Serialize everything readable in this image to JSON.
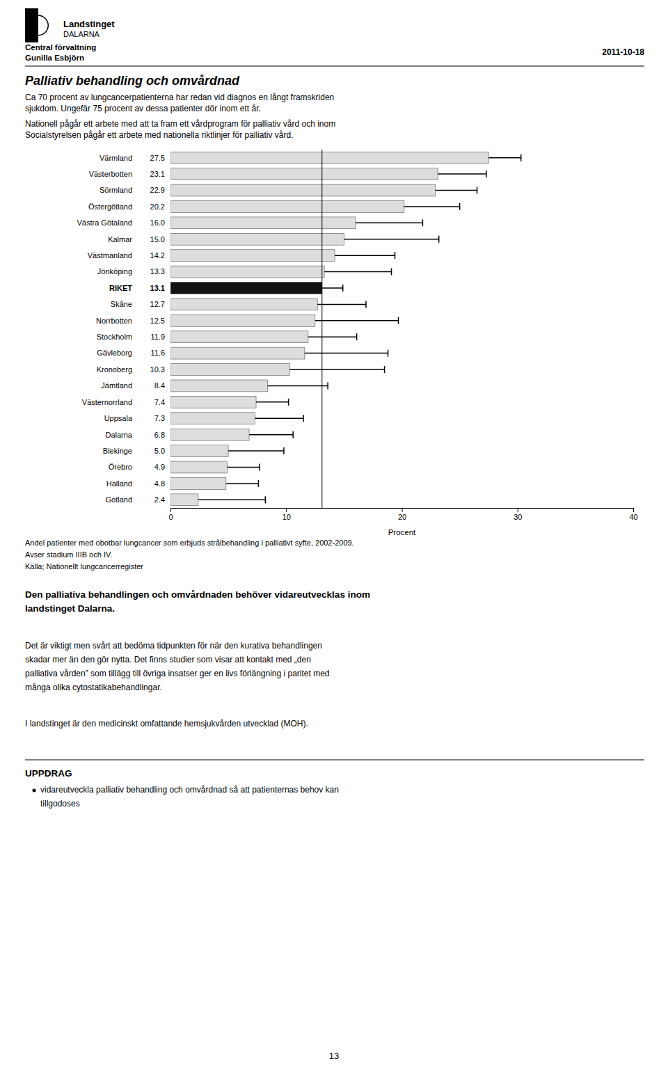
{
  "header": {
    "organization": "Landstinget",
    "region": "DALARNA",
    "department": "Central förvaltning",
    "author": "Gunilla Esbjörn",
    "date": "2011-10-18"
  },
  "title": "Palliativ behandling och omvårdnad",
  "subtitle_lines": [
    "Ca 70 procent av lungcancerpatienterna har redan vid diagnos en långt framskriden",
    "sjukdom. Ungefär 75 procent av dessa patienter dör inom ett år."
  ],
  "intro_lines": [
    "Nationell pågår ett arbete med att ta fram ett vårdprogram för palliativ vård och inom",
    "Socialstyrelsen pågår ett arbete med nationella riktlinjer för palliativ vård."
  ],
  "chart_data": {
    "type": "bar",
    "orientation": "horizontal",
    "categories": [
      "Värmland",
      "Västerbotten",
      "Sörmland",
      "Östergötland",
      "Västra Götaland",
      "Kalmar",
      "Västmanland",
      "Jönköping",
      "RIKET",
      "Skåne",
      "Norrbotten",
      "Stockholm",
      "Gävleborg",
      "Kronoberg",
      "Jämtland",
      "Västernorrland",
      "Uppsala",
      "Dalarna",
      "Blekinge",
      "Örebro",
      "Halland",
      "Gotland"
    ],
    "values": [
      27.5,
      23.1,
      22.9,
      20.2,
      16.0,
      15.0,
      14.2,
      13.3,
      13.1,
      12.7,
      12.5,
      11.9,
      11.6,
      10.3,
      8.4,
      7.4,
      7.3,
      6.8,
      5.0,
      4.9,
      4.8,
      2.4
    ],
    "value_labels": [
      "27.5",
      "23.1",
      "22.9",
      "20.2",
      "16.0",
      "15.0",
      "14.2",
      "13.3",
      "13.1",
      "12.7",
      "12.5",
      "11.9",
      "11.6",
      "10.3",
      "8.4",
      "7.4",
      "7.3",
      "6.8",
      "5.0",
      "4.9",
      "4.8",
      "2.4"
    ],
    "data_labels": true,
    "errors": [
      2.8,
      4.2,
      3.6,
      4.8,
      5.8,
      8.2,
      5.2,
      5.8,
      1.8,
      4.2,
      7.2,
      4.2,
      7.2,
      8.2,
      5.2,
      2.8,
      4.2,
      3.8,
      4.8,
      2.8,
      2.8,
      5.8
    ],
    "reference_value": 13.1,
    "colors": [
      "#dddddd",
      "#dddddd",
      "#dddddd",
      "#dddddd",
      "#dddddd",
      "#dddddd",
      "#dddddd",
      "#dddddd",
      "#111111",
      "#dddddd",
      "#dddddd",
      "#dddddd",
      "#dddddd",
      "#dddddd",
      "#dddddd",
      "#dddddd",
      "#dddddd",
      "#dddddd",
      "#dddddd",
      "#dddddd",
      "#dddddd",
      "#dddddd"
    ],
    "xlabel": "Procent",
    "xlim": [
      0,
      40
    ],
    "xticks": [
      0,
      10,
      20,
      30,
      40
    ],
    "grid": false,
    "caption_lines": [
      "Andel patienter med obotbar lungcancer som erbjuds strålbehandling i palliativt syfte, 2002-2009.",
      "Avser stadium IIIB och IV.",
      "Källa; Nationellt lungcancerregister"
    ]
  },
  "body_text1_lines": [
    "Den palliativa behandlingen och omvårdnaden behöver vidareutvecklas inom",
    "landstinget Dalarna."
  ],
  "body_text2_lines": [
    "Det är viktigt men svårt att bedöma tidpunkten för när den kurativa behandlingen",
    "skadar mer än den gör nytta. Det finns studier som visar att kontakt med „den",
    "palliativa vården” som tillägg till övriga insatser ger en livs förlängning i paritet med",
    "många olika cytostatikabehandlingar."
  ],
  "body_text3": "I landstinget är den medicinskt omfattande hemsjukvården utvecklad (MOH).",
  "uppdrag_header": "UPPDRAG",
  "uppdrag_lines": [
    "vidareutveckla palliativ behandling och omvårdnad så att patienternas behov kan",
    "tillgodoses"
  ],
  "page_number": "13"
}
